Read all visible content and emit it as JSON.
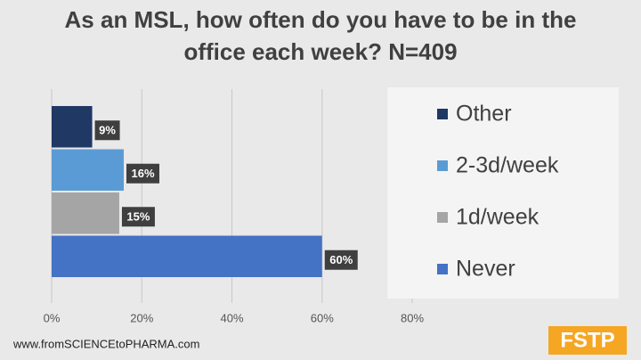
{
  "chart_data": {
    "type": "bar",
    "orientation": "horizontal",
    "title": "As an MSL, how often do you have to be in the office each week? N=409",
    "categories": [
      "Other",
      "2-3d/week",
      "1d/week",
      "Never"
    ],
    "values": [
      9,
      16,
      15,
      60
    ],
    "value_labels": [
      "9%",
      "16%",
      "15%",
      "60%"
    ],
    "colors": [
      "#203864",
      "#5b9bd5",
      "#a5a5a5",
      "#4472c4"
    ],
    "xlim": [
      0,
      80
    ],
    "xticks": [
      {
        "value": 0,
        "label": "0%"
      },
      {
        "value": 20,
        "label": "20%"
      },
      {
        "value": 40,
        "label": "40%"
      },
      {
        "value": 60,
        "label": "60%"
      },
      {
        "value": 80,
        "label": "80%"
      }
    ],
    "grid": true,
    "legend": "right"
  },
  "footer": {
    "url": "www.fromSCIENCEtoPHARMA.com",
    "logo": "FSTP"
  }
}
